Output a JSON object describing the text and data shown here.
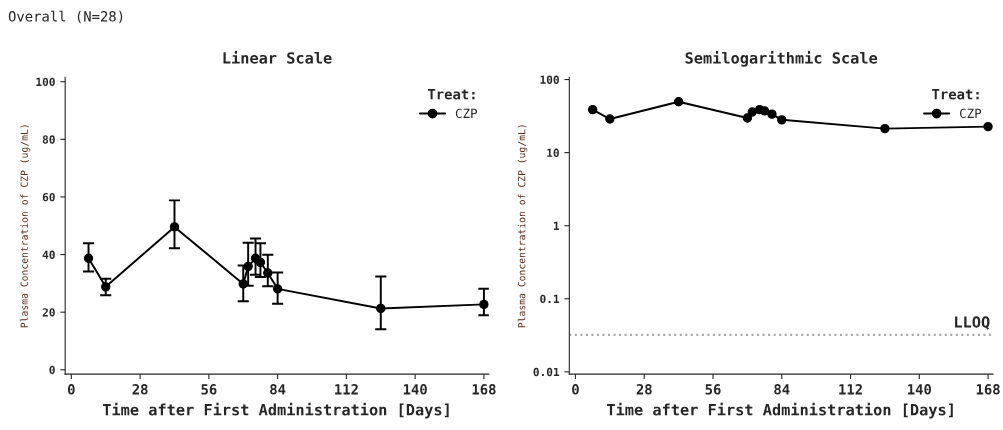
{
  "chart_data": [
    {
      "type": "line",
      "title": "Linear Scale",
      "xlabel": "Time after First Administration [Days]",
      "ylabel": "Plasma Concentration of CZP (ug/mL)",
      "legend_title": "Treat:",
      "legend": "top right",
      "marker": "circle",
      "line_style": "solid",
      "grid": false,
      "annotations": [
        "Overall (N=28)"
      ],
      "x": [
        7,
        14,
        42,
        70,
        72,
        75,
        77,
        80,
        84,
        126,
        168
      ],
      "series": [
        {
          "name": "CZP",
          "color": "#000000",
          "values": [
            38.7,
            28.8,
            49.6,
            29.8,
            35.9,
            38.7,
            37.3,
            33.6,
            28.1,
            21.3,
            22.7
          ],
          "errors": [
            [
              34.1,
              43.9
            ],
            [
              25.9,
              31.6
            ],
            [
              42.2,
              58.8
            ],
            [
              23.8,
              36.2
            ],
            [
              29.2,
              44.1
            ],
            [
              33.0,
              45.6
            ],
            [
              32.2,
              43.9
            ],
            [
              29.0,
              39.9
            ],
            [
              22.9,
              33.8
            ],
            [
              14.1,
              32.4
            ],
            [
              18.9,
              28.1
            ]
          ]
        }
      ],
      "xlim": [
        -2.5,
        170
      ],
      "xticks": [
        0,
        28,
        56,
        84,
        112,
        140,
        168
      ],
      "ylim": [
        -1.5,
        101.5
      ],
      "yticks": [
        0,
        20,
        40,
        60,
        80,
        100
      ]
    },
    {
      "type": "line",
      "title": "Semilogarithmic Scale",
      "xlabel": "Time after First Administration [Days]",
      "ylabel": "Plasma Concentration of CZP (ug/mL)",
      "legend_title": "Treat:",
      "legend": "top right",
      "marker": "circle",
      "line_style": "solid",
      "grid": false,
      "log": "y",
      "x": [
        7,
        14,
        42,
        70,
        72,
        75,
        77,
        80,
        84,
        126,
        168
      ],
      "series": [
        {
          "name": "CZP",
          "color": "#000000",
          "values": [
            38.7,
            28.8,
            49.6,
            29.8,
            35.9,
            38.7,
            37.3,
            33.6,
            28.1,
            21.3,
            22.7
          ]
        }
      ],
      "ref_lines": [
        {
          "axis": "y",
          "value": 0.032,
          "label": "LLOQ",
          "color": "#aaaaaa",
          "line_style": "dotted"
        }
      ],
      "xlim": [
        -2.5,
        170
      ],
      "xticks": [
        0,
        28,
        56,
        84,
        112,
        140,
        168
      ],
      "ylim": [
        0.0093,
        107
      ],
      "yticks": [
        0.01,
        0.1,
        1,
        10,
        100
      ]
    }
  ]
}
